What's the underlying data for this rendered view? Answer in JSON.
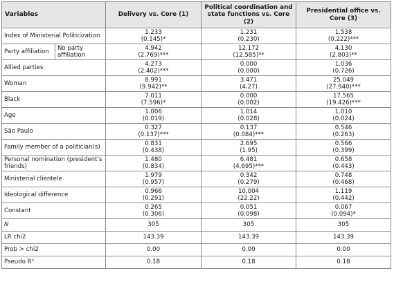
{
  "header": {
    "variables": "Variables",
    "col1": "Delivery vs. Core (1)",
    "col2": "Political coordination and state functions vs. Core (2)",
    "col3": "Presidential office vs. Core (3)"
  },
  "rows": {
    "imp": {
      "label": "Index of Ministerial Politicization",
      "c1": {
        "coef": "1.233",
        "se": "(0.145)*"
      },
      "c2": {
        "coef": "1.231",
        "se": "(0.230)"
      },
      "c3": {
        "coef": "1.538",
        "se": "(0.222)***"
      }
    },
    "party": {
      "label": "Party affiliation",
      "sublabel": "No party affiliation",
      "c1": {
        "coef": "4.942",
        "se": "(2.769)***"
      },
      "c2": {
        "coef": "12.172",
        "se": "(12.585)**"
      },
      "c3": {
        "coef": "4.130",
        "se": "(2.803)**"
      }
    },
    "allied": {
      "label": "Allied parties",
      "c1": {
        "coef": "4.273",
        "se": "(2.402)***"
      },
      "c2": {
        "coef": "0.000",
        "se": "(0.000)"
      },
      "c3": {
        "coef": "1.036",
        "se": "(0.726)"
      }
    },
    "woman": {
      "label": "Woman",
      "c1": {
        "coef": "8.991",
        "se": "(9.942)**"
      },
      "c2": {
        "coef": "3.471",
        "se": "(4.27)"
      },
      "c3": {
        "coef": "25.049",
        "se": "(27.940)***"
      }
    },
    "black": {
      "label": "Black",
      "c1": {
        "coef": "7.011",
        "se": "(7.596)*"
      },
      "c2": {
        "coef": "0.000",
        "se": "(0.002)"
      },
      "c3": {
        "coef": "17.565",
        "se": "(19.426)***"
      }
    },
    "age": {
      "label": "Age",
      "c1": {
        "coef": "1.006",
        "se": "(0.019)"
      },
      "c2": {
        "coef": "1.014",
        "se": "(0.028)"
      },
      "c3": {
        "coef": "1.010",
        "se": "(0.024)"
      }
    },
    "sp": {
      "label": "São Paulo",
      "c1": {
        "coef": "0.327",
        "se": "(0.137)***"
      },
      "c2": {
        "coef": "0.137",
        "se": "(0.084)***"
      },
      "c3": {
        "coef": "0.546",
        "se": "(0.263)"
      }
    },
    "family": {
      "label": "Family member of a politician(s)",
      "c1": {
        "coef": "0.831",
        "se": "(0.438)"
      },
      "c2": {
        "coef": "2.695",
        "se": "(1.95)"
      },
      "c3": {
        "coef": "0.566",
        "se": "(0.399)"
      }
    },
    "nomination": {
      "label": "Personal nomination (president's friends)",
      "c1": {
        "coef": "1.480",
        "se": "(0.834)"
      },
      "c2": {
        "coef": "6.481",
        "se": "(4.695)***"
      },
      "c3": {
        "coef": "0.658",
        "se": "(0.443)"
      }
    },
    "clientele": {
      "label": "Ministerial clientele",
      "c1": {
        "coef": "1.979",
        "se": "(0.957)"
      },
      "c2": {
        "coef": "0.342",
        "se": "(0.279)"
      },
      "c3": {
        "coef": "0.748",
        "se": "(0.468)"
      }
    },
    "ideology": {
      "label": "Ideological difference",
      "c1": {
        "coef": "0.966",
        "se": "(0.291)"
      },
      "c2": {
        "coef": "10.004",
        "se": "(22.22)"
      },
      "c3": {
        "coef": "1.119",
        "se": "(0.442)"
      }
    },
    "constant": {
      "label": "Constant",
      "c1": {
        "coef": "0.265",
        "se": "(0.306)"
      },
      "c2": {
        "coef": "0.051",
        "se": "(0.098)"
      },
      "c3": {
        "coef": "0.067",
        "se": "(0.094)*"
      }
    }
  },
  "stats": {
    "n": {
      "label": "N",
      "c1": "305",
      "c2": "305",
      "c3": "305"
    },
    "lr": {
      "label": "LR chi2",
      "c1": "143.39",
      "c2": "143.39",
      "c3": "143.39"
    },
    "prob": {
      "label": "Prob > chi2",
      "c1": "0.00",
      "c2": "0.00",
      "c3": "0.00"
    },
    "pseudo": {
      "label": "Pseudo R²",
      "c1": "0.18",
      "c2": "0.18",
      "c3": "0.18"
    }
  }
}
